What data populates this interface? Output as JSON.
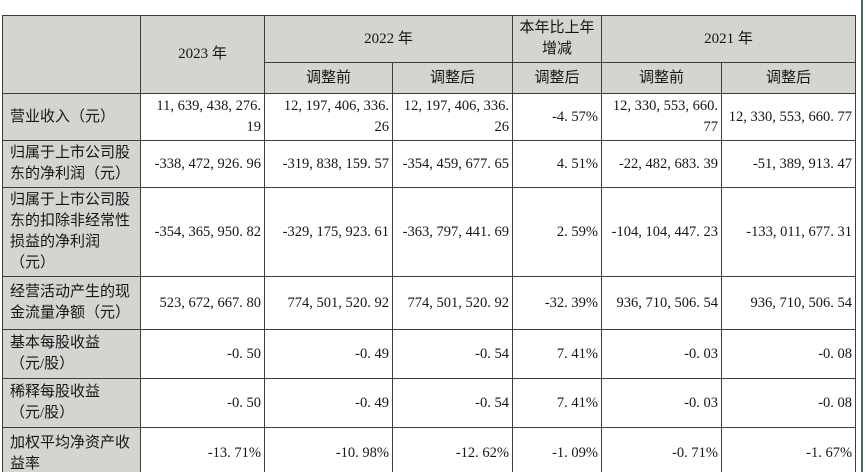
{
  "colors": {
    "header_fill": "#d4d4d1",
    "table_border": "#3d3d3d",
    "right_edge_green": "#3f6e50",
    "text": "#161616",
    "page_background": "#ffffff"
  },
  "table": {
    "header_row1": [
      {
        "text": "",
        "colspan": 1,
        "rowspan": 2
      },
      {
        "text": "2023 年",
        "colspan": 1,
        "rowspan": 2
      },
      {
        "text": "2022 年",
        "colspan": 2,
        "rowspan": 1
      },
      {
        "text": "本年比上年增减",
        "colspan": 1,
        "rowspan": 1
      },
      {
        "text": "2021 年",
        "colspan": 2,
        "rowspan": 1
      }
    ],
    "header_row2": [
      "调整前",
      "调整后",
      "调整后",
      "调整前",
      "调整后"
    ],
    "rows": [
      {
        "label": "营业收入（元）",
        "values": [
          "11, 639, 438, 276. 19",
          "12, 197, 406, 336. 26",
          "12, 197, 406, 336. 26",
          "-4. 57%",
          "12, 330, 553, 660. 77",
          "12, 330, 553, 660. 77"
        ]
      },
      {
        "label": "归属于上市公司股东的净利润（元）",
        "values": [
          "-338, 472, 926. 96",
          "-319, 838, 159. 57",
          "-354, 459, 677. 65",
          "4. 51%",
          "-22, 482, 683. 39",
          "-51, 389, 913. 47"
        ]
      },
      {
        "label": "归属于上市公司股东的扣除非经常性损益的净利润（元）",
        "values": [
          "-354, 365, 950. 82",
          "-329, 175, 923. 61",
          "-363, 797, 441. 69",
          "2. 59%",
          "-104, 104, 447. 23",
          "-133, 011, 677. 31"
        ]
      },
      {
        "label": "经营活动产生的现金流量净额（元）",
        "values": [
          "523, 672, 667. 80",
          "774, 501, 520. 92",
          "774, 501, 520. 92",
          "-32. 39%",
          "936, 710, 506. 54",
          "936, 710, 506. 54"
        ]
      },
      {
        "label": "基本每股收益（元/股）",
        "values": [
          "-0. 50",
          "-0. 49",
          "-0. 54",
          "7. 41%",
          "-0. 03",
          "-0. 08"
        ]
      },
      {
        "label": "稀释每股收益（元/股）",
        "values": [
          "-0. 50",
          "-0. 49",
          "-0. 54",
          "7. 41%",
          "-0. 03",
          "-0. 08"
        ]
      },
      {
        "label": "加权平均净资产收益率",
        "values": [
          "-13. 71%",
          "-10. 98%",
          "-12. 62%",
          "-1. 09%",
          "-0. 71%",
          "-1. 67%"
        ]
      }
    ]
  }
}
